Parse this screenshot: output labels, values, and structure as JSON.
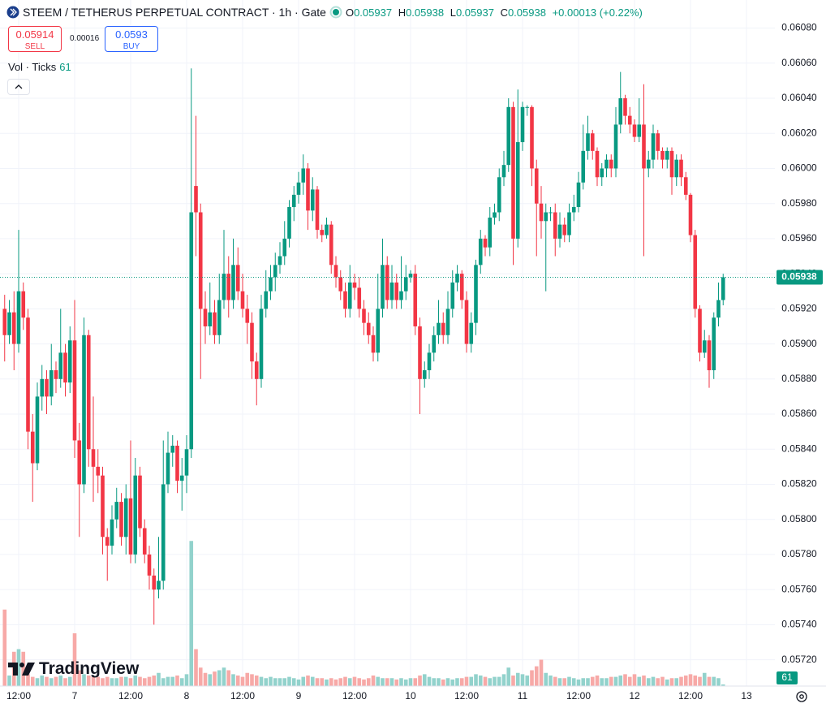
{
  "chart_data": {
    "type": "candlestick",
    "title": "STEEM / TETHERUS PERPETUAL CONTRACT · 1h · Gate",
    "ohlc_labels": [
      "O",
      "H",
      "L",
      "C"
    ],
    "ohlc_values": [
      0.05937,
      0.05938,
      0.05937,
      0.05938
    ],
    "change": "+0.00013 (+0.22%)",
    "sell": {
      "price": 0.05914,
      "label": "SELL"
    },
    "spread": 0.00016,
    "buy": {
      "price": 0.0593,
      "label": "BUY"
    },
    "volume_label": "Vol · Ticks",
    "watermark": "TradingView",
    "last_price": 0.05938,
    "up_color": "#089981",
    "down_color": "#f23645",
    "volume_up_color": "#92d2cc",
    "volume_down_color": "#f7a9a7",
    "grid": true,
    "ylim": [
      0.05705,
      0.06096
    ],
    "yticks": [
      {
        "value": 0.0608,
        "label": "0.06080"
      },
      {
        "value": 0.0606,
        "label": "0.06060"
      },
      {
        "value": 0.0604,
        "label": "0.06040"
      },
      {
        "value": 0.0602,
        "label": "0.06020"
      },
      {
        "value": 0.06,
        "label": "0.06000"
      },
      {
        "value": 0.0598,
        "label": "0.05980"
      },
      {
        "value": 0.0596,
        "label": "0.05960"
      },
      {
        "value": 0.0594,
        "label": "0.05940"
      },
      {
        "value": 0.0592,
        "label": "0.05920"
      },
      {
        "value": 0.059,
        "label": "0.05900"
      },
      {
        "value": 0.0588,
        "label": "0.05880"
      },
      {
        "value": 0.0586,
        "label": "0.05860"
      },
      {
        "value": 0.0584,
        "label": "0.05840"
      },
      {
        "value": 0.0582,
        "label": "0.05820"
      },
      {
        "value": 0.058,
        "label": "0.05800"
      },
      {
        "value": 0.0578,
        "label": "0.05780"
      },
      {
        "value": 0.0576,
        "label": "0.05760"
      },
      {
        "value": 0.0574,
        "label": "0.05740"
      },
      {
        "value": 0.0572,
        "label": "0.05720"
      }
    ],
    "categories": [
      null,
      null,
      null,
      "12:00",
      null,
      null,
      null,
      null,
      null,
      null,
      null,
      null,
      null,
      null,
      null,
      "7",
      null,
      null,
      null,
      null,
      null,
      null,
      null,
      null,
      null,
      null,
      null,
      "12:00",
      null,
      null,
      null,
      null,
      null,
      null,
      null,
      null,
      null,
      null,
      null,
      "8",
      null,
      null,
      null,
      null,
      null,
      null,
      null,
      null,
      null,
      null,
      null,
      "12:00",
      null,
      null,
      null,
      null,
      null,
      null,
      null,
      null,
      null,
      null,
      null,
      "9",
      null,
      null,
      null,
      null,
      null,
      null,
      null,
      null,
      null,
      null,
      null,
      "12:00",
      null,
      null,
      null,
      null,
      null,
      null,
      null,
      null,
      null,
      null,
      null,
      "10",
      null,
      null,
      null,
      null,
      null,
      null,
      null,
      null,
      null,
      null,
      null,
      "12:00",
      null,
      null,
      null,
      null,
      null,
      null,
      null,
      null,
      null,
      null,
      null,
      "11",
      null,
      null,
      null,
      null,
      null,
      null,
      null,
      null,
      null,
      null,
      null,
      "12:00",
      null,
      null,
      null,
      null,
      null,
      null,
      null,
      null,
      null,
      null,
      null,
      "12",
      null,
      null,
      null,
      null,
      null,
      null,
      null,
      null,
      null,
      null,
      null,
      "12:00",
      null,
      null,
      null,
      null,
      null,
      null,
      null,
      null,
      null,
      null,
      null,
      "13"
    ],
    "open": [
      0.0592,
      0.05905,
      0.05918,
      0.059,
      0.0593,
      0.05915,
      0.0585,
      0.05832,
      0.0587,
      0.0588,
      0.0587,
      0.05885,
      0.0588,
      0.05895,
      0.05878,
      0.05902,
      0.05845,
      0.0582,
      0.05905,
      0.0584,
      0.0583,
      0.05825,
      0.0579,
      0.05785,
      0.058,
      0.0581,
      0.0579,
      0.05812,
      0.0578,
      0.05825,
      0.05795,
      0.0578,
      0.05768,
      0.0576,
      0.05765,
      0.0582,
      0.05838,
      0.05842,
      0.05822,
      0.05825,
      0.0584,
      0.0599,
      0.05975,
      0.0592,
      0.0591,
      0.05918,
      0.05905,
      0.05925,
      0.0594,
      0.05925,
      0.05945,
      0.0593,
      0.0592,
      0.05912,
      0.0589,
      0.0588,
      0.0592,
      0.0593,
      0.05938,
      0.05945,
      0.0595,
      0.0596,
      0.05978,
      0.05985,
      0.05992,
      0.06,
      0.05976,
      0.05988,
      0.05965,
      0.05962,
      0.05968,
      0.05945,
      0.05938,
      0.0593,
      0.0592,
      0.05935,
      0.05932,
      0.0592,
      0.05912,
      0.05905,
      0.05895,
      0.0592,
      0.05945,
      0.05925,
      0.05935,
      0.05925,
      0.0593,
      0.05938,
      0.0594,
      0.0591,
      0.0588,
      0.05885,
      0.05895,
      0.05905,
      0.05912,
      0.05905,
      0.0592,
      0.05935,
      0.0594,
      0.05925,
      0.059,
      0.05912,
      0.05945,
      0.0596,
      0.05955,
      0.05972,
      0.05975,
      0.05995,
      0.06002,
      0.06035,
      0.0596,
      0.06015,
      0.06035,
      0.06035,
      0.06,
      0.0598,
      0.0597,
      0.05975,
      0.05975,
      0.0596,
      0.05968,
      0.05962,
      0.05975,
      0.05978,
      0.05992,
      0.0601,
      0.0602,
      0.0601,
      0.05995,
      0.06,
      0.06005,
      0.06,
      0.06025,
      0.0604,
      0.0603,
      0.06025,
      0.06018,
      0.06025,
      0.06,
      0.06005,
      0.0602,
      0.0601,
      0.06005,
      0.0601,
      0.05995,
      0.06005,
      0.05995,
      0.05985,
      0.05962,
      0.0592,
      0.05895,
      0.05902,
      0.05885,
      0.05915,
      0.05925,
      null,
      null,
      null,
      null,
      null
    ],
    "high": [
      0.05928,
      0.05925,
      0.0593,
      0.05965,
      0.05935,
      0.0592,
      0.0586,
      0.05878,
      0.05888,
      0.05885,
      0.059,
      0.0589,
      0.0592,
      0.059,
      0.0591,
      0.05925,
      0.05855,
      0.05915,
      0.05908,
      0.0587,
      0.0584,
      0.0583,
      0.05795,
      0.05808,
      0.05818,
      0.05815,
      0.0582,
      0.05845,
      0.05835,
      0.0583,
      0.058,
      0.05785,
      0.05772,
      0.0579,
      0.05845,
      0.0585,
      0.05848,
      0.05845,
      0.05835,
      0.05848,
      0.06057,
      0.0603,
      0.0598,
      0.0593,
      0.05935,
      0.05925,
      0.0594,
      0.05965,
      0.0595,
      0.0596,
      0.05955,
      0.0594,
      0.05928,
      0.05918,
      0.05895,
      0.05928,
      0.05942,
      0.05945,
      0.05952,
      0.05958,
      0.0597,
      0.05982,
      0.0599,
      0.05998,
      0.06008,
      0.06003,
      0.05995,
      0.0599,
      0.05968,
      0.05972,
      0.0597,
      0.0595,
      0.05942,
      0.05935,
      0.05945,
      0.0594,
      0.05938,
      0.05925,
      0.05918,
      0.0591,
      0.0594,
      0.0596,
      0.0595,
      0.05945,
      0.0594,
      0.0595,
      0.05945,
      0.05942,
      0.05945,
      0.05915,
      0.0589,
      0.059,
      0.0591,
      0.05925,
      0.05918,
      0.0593,
      0.05942,
      0.05945,
      0.05942,
      0.0593,
      0.05918,
      0.05948,
      0.05965,
      0.05962,
      0.05978,
      0.0598,
      0.06,
      0.0601,
      0.0604,
      0.06038,
      0.06045,
      0.06038,
      0.06036,
      0.06036,
      0.06005,
      0.0599,
      0.0598,
      0.05978,
      0.0598,
      0.05975,
      0.05972,
      0.0598,
      0.05985,
      0.05998,
      0.06025,
      0.0603,
      0.06022,
      0.06012,
      0.06003,
      0.06008,
      0.06008,
      0.06035,
      0.06055,
      0.06042,
      0.06035,
      0.06028,
      0.0604,
      0.06048,
      0.0601,
      0.06025,
      0.06022,
      0.06012,
      0.06012,
      0.06012,
      0.06008,
      0.06008,
      0.05998,
      0.05986,
      0.05965,
      0.05922,
      0.05908,
      0.05905,
      0.05918,
      0.05935,
      0.0594,
      null,
      null,
      null,
      null,
      null
    ],
    "low": [
      0.0589,
      0.059,
      0.05885,
      0.05895,
      0.05908,
      0.0584,
      0.0581,
      0.05828,
      0.05862,
      0.0586,
      0.05865,
      0.05872,
      0.05875,
      0.0587,
      0.05872,
      0.05835,
      0.0579,
      0.05815,
      0.0583,
      0.0581,
      0.05815,
      0.0578,
      0.05765,
      0.0578,
      0.05795,
      0.05785,
      0.0578,
      0.05775,
      0.05775,
      0.0579,
      0.05775,
      0.0576,
      0.0574,
      0.05755,
      0.0576,
      0.05815,
      0.0583,
      0.05815,
      0.05805,
      0.05815,
      0.05835,
      0.0595,
      0.0588,
      0.059,
      0.05905,
      0.059,
      0.059,
      0.0592,
      0.05915,
      0.0592,
      0.05925,
      0.05915,
      0.059,
      0.0588,
      0.05865,
      0.05875,
      0.05915,
      0.05925,
      0.0593,
      0.0594,
      0.05945,
      0.05955,
      0.0597,
      0.0598,
      0.05985,
      0.05965,
      0.0597,
      0.0596,
      0.05958,
      0.0596,
      0.0594,
      0.05932,
      0.05925,
      0.05915,
      0.05915,
      0.05925,
      0.05915,
      0.05905,
      0.059,
      0.0589,
      0.0589,
      0.05915,
      0.0592,
      0.0592,
      0.0592,
      0.0592,
      0.05925,
      0.05935,
      0.05905,
      0.0586,
      0.05875,
      0.0588,
      0.0589,
      0.059,
      0.059,
      0.059,
      0.05915,
      0.0593,
      0.0592,
      0.05895,
      0.05895,
      0.05905,
      0.0594,
      0.0595,
      0.0595,
      0.05968,
      0.0597,
      0.0599,
      0.05998,
      0.05945,
      0.05955,
      0.0601,
      0.0603,
      0.0599,
      0.0595,
      0.0596,
      0.0593,
      0.0597,
      0.0595,
      0.05955,
      0.05958,
      0.05958,
      0.0597,
      0.05975,
      0.05988,
      0.06005,
      0.06005,
      0.0599,
      0.0599,
      0.05995,
      0.05995,
      0.05995,
      0.0602,
      0.06025,
      0.0602,
      0.06015,
      0.06015,
      0.0595,
      0.05995,
      0.06,
      0.06005,
      0.06,
      0.06,
      0.05985,
      0.0599,
      0.0599,
      0.05982,
      0.05958,
      0.05915,
      0.0589,
      0.05892,
      0.05875,
      0.0588,
      0.0591,
      0.05922,
      null,
      null,
      null,
      null,
      null
    ],
    "close": [
      0.05905,
      0.05918,
      0.059,
      0.0593,
      0.05915,
      0.0585,
      0.05832,
      0.0587,
      0.0588,
      0.0587,
      0.05885,
      0.0588,
      0.05895,
      0.05878,
      0.05902,
      0.05845,
      0.0582,
      0.05905,
      0.0584,
      0.0583,
      0.05825,
      0.0579,
      0.05785,
      0.058,
      0.0581,
      0.0579,
      0.05812,
      0.0578,
      0.05825,
      0.05795,
      0.0578,
      0.05768,
      0.0576,
      0.05765,
      0.0582,
      0.05838,
      0.05842,
      0.05822,
      0.05825,
      0.0584,
      0.05975,
      0.05975,
      0.0592,
      0.0591,
      0.05918,
      0.05905,
      0.05925,
      0.0594,
      0.05925,
      0.05945,
      0.0593,
      0.0592,
      0.05912,
      0.0589,
      0.0588,
      0.0592,
      0.0593,
      0.05938,
      0.05945,
      0.0595,
      0.0596,
      0.05978,
      0.05985,
      0.05992,
      0.06,
      0.05976,
      0.05988,
      0.05965,
      0.05962,
      0.05968,
      0.05945,
      0.05938,
      0.0593,
      0.0592,
      0.05935,
      0.05932,
      0.0592,
      0.05912,
      0.05905,
      0.05895,
      0.0592,
      0.05945,
      0.05925,
      0.05935,
      0.05925,
      0.0593,
      0.05938,
      0.0594,
      0.0591,
      0.0588,
      0.05885,
      0.05895,
      0.05905,
      0.05912,
      0.05905,
      0.0592,
      0.05935,
      0.0594,
      0.05925,
      0.059,
      0.05912,
      0.05945,
      0.0596,
      0.05955,
      0.05972,
      0.05975,
      0.05995,
      0.06002,
      0.06035,
      0.0596,
      0.06015,
      0.06035,
      0.06035,
      0.06,
      0.0598,
      0.0597,
      0.05975,
      0.05975,
      0.0596,
      0.05968,
      0.05962,
      0.05975,
      0.05978,
      0.05992,
      0.0601,
      0.0602,
      0.0601,
      0.05995,
      0.06,
      0.06005,
      0.06,
      0.06025,
      0.0604,
      0.0603,
      0.06025,
      0.06018,
      0.06025,
      0.06,
      0.06005,
      0.0602,
      0.0601,
      0.06005,
      0.0601,
      0.05995,
      0.06005,
      0.05995,
      0.05985,
      0.05962,
      0.0592,
      0.05895,
      0.05902,
      0.05885,
      0.05915,
      0.05925,
      0.05938,
      null,
      null,
      null,
      null,
      null
    ],
    "volume": {
      "ylim": [
        0,
        26000
      ],
      "values": [
        2900,
        400,
        1300,
        1400,
        1300,
        450,
        350,
        300,
        400,
        350,
        300,
        350,
        400,
        300,
        350,
        2000,
        600,
        450,
        400,
        350,
        350,
        300,
        350,
        300,
        300,
        350,
        350,
        300,
        400,
        350,
        300,
        350,
        400,
        500,
        300,
        350,
        350,
        400,
        300,
        450,
        5500,
        1400,
        700,
        500,
        450,
        550,
        600,
        700,
        600,
        450,
        400,
        350,
        500,
        450,
        400,
        350,
        300,
        350,
        300,
        300,
        300,
        350,
        300,
        250,
        350,
        400,
        350,
        300,
        300,
        250,
        300,
        250,
        300,
        350,
        300,
        350,
        300,
        250,
        300,
        400,
        350,
        300,
        300,
        300,
        250,
        300,
        250,
        300,
        300,
        400,
        450,
        350,
        300,
        300,
        250,
        300,
        250,
        300,
        300,
        350,
        350,
        450,
        400,
        350,
        300,
        350,
        350,
        450,
        700,
        400,
        500,
        450,
        400,
        600,
        750,
        1000,
        500,
        400,
        350,
        300,
        300,
        350,
        300,
        250,
        300,
        300,
        350,
        400,
        300,
        300,
        350,
        350,
        400,
        450,
        350,
        450,
        350,
        400,
        300,
        350,
        300,
        350,
        250,
        300,
        300,
        350,
        400,
        450,
        400,
        350,
        500,
        350,
        350,
        300,
        61,
        null,
        null,
        null,
        null,
        null
      ]
    }
  }
}
